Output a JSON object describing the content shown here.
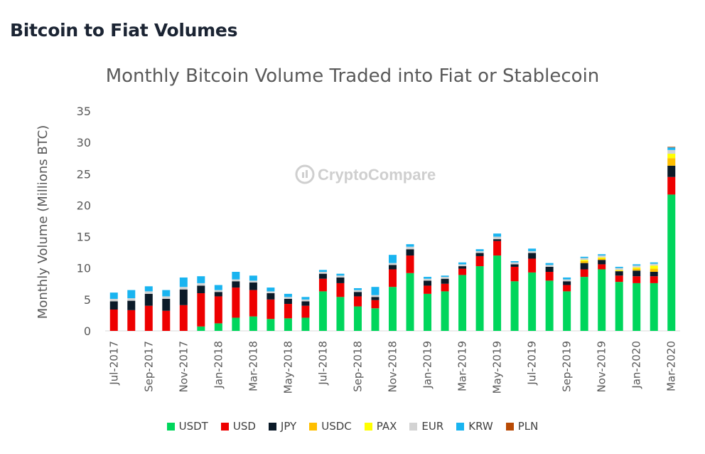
{
  "page": {
    "heading": "Bitcoin to Fiat Volumes",
    "watermark": "CryptoCompare"
  },
  "colors": {
    "USDT": "#00d65c",
    "USD": "#ee0000",
    "JPY": "#0b1a28",
    "USDC": "#ffbf00",
    "PAX": "#ffff00",
    "EUR": "#d3d3d3",
    "KRW": "#19b4f0",
    "PLN": "#b84a05"
  },
  "chart_data": {
    "type": "bar",
    "stacked": true,
    "title": "Monthly Bitcoin Volume Traded into Fiat or Stablecoin",
    "xlabel": "",
    "ylabel": "Monthly Volume (Millions BTC)",
    "ylim": [
      0,
      35
    ],
    "yticks": [
      0,
      5,
      10,
      15,
      20,
      25,
      30,
      35
    ],
    "grid": false,
    "legend_position": "bottom",
    "categories": [
      "Jul-2017",
      "Aug-2017",
      "Sep-2017",
      "Oct-2017",
      "Nov-2017",
      "Dec-2017",
      "Jan-2018",
      "Feb-2018",
      "Mar-2018",
      "Apr-2018",
      "May-2018",
      "Jun-2018",
      "Jul-2018",
      "Aug-2018",
      "Sep-2018",
      "Oct-2018",
      "Nov-2018",
      "Dec-2018",
      "Jan-2019",
      "Feb-2019",
      "Mar-2019",
      "Apr-2019",
      "May-2019",
      "Jun-2019",
      "Jul-2019",
      "Aug-2019",
      "Sep-2019",
      "Oct-2019",
      "Nov-2019",
      "Dec-2019",
      "Jan-2020",
      "Feb-2020",
      "Mar-2020"
    ],
    "x_tick_labels": [
      "Jul-2017",
      "",
      "Sep-2017",
      "",
      "Nov-2017",
      "",
      "Jan-2018",
      "",
      "Mar-2018",
      "",
      "May-2018",
      "",
      "Jul-2018",
      "",
      "Sep-2018",
      "",
      "Nov-2018",
      "",
      "Jan-2019",
      "",
      "Mar-2019",
      "",
      "May-2019",
      "",
      "Jul-2019",
      "",
      "Sep-2019",
      "",
      "Nov-2019",
      "",
      "Jan-2020",
      "",
      "Mar-2020"
    ],
    "series": [
      {
        "name": "USDT",
        "values": [
          0,
          0,
          0,
          0,
          0,
          0.7,
          1.2,
          2.1,
          2.3,
          1.9,
          2.0,
          2.1,
          6.3,
          5.4,
          3.9,
          3.6,
          7.0,
          9.2,
          5.9,
          6.3,
          8.9,
          10.3,
          12.0,
          7.9,
          9.3,
          8.0,
          6.3,
          8.6,
          9.8,
          7.8,
          7.6,
          7.6,
          21.7
        ]
      },
      {
        "name": "USD",
        "values": [
          3.4,
          3.3,
          4.0,
          3.2,
          4.1,
          5.3,
          4.3,
          4.8,
          4.2,
          3.1,
          2.3,
          1.9,
          2.0,
          2.2,
          1.6,
          1.3,
          2.8,
          2.8,
          1.3,
          1.2,
          1.0,
          1.6,
          2.3,
          2.3,
          2.2,
          1.4,
          1.0,
          1.2,
          0.8,
          1.0,
          1.1,
          1.1,
          2.8
        ]
      },
      {
        "name": "JPY",
        "values": [
          1.3,
          1.5,
          1.9,
          1.9,
          2.5,
          1.2,
          0.7,
          1.0,
          1.2,
          1.0,
          0.8,
          0.7,
          0.8,
          0.9,
          0.7,
          0.5,
          0.7,
          1.0,
          0.8,
          0.8,
          0.4,
          0.5,
          0.3,
          0.4,
          0.9,
          0.8,
          0.6,
          1.0,
          0.7,
          0.7,
          0.9,
          0.7,
          1.8
        ]
      },
      {
        "name": "USDC",
        "values": [
          0,
          0,
          0,
          0,
          0,
          0,
          0,
          0,
          0,
          0,
          0,
          0,
          0,
          0,
          0,
          0,
          0,
          0,
          0,
          0,
          0,
          0,
          0,
          0,
          0,
          0,
          0,
          0.3,
          0.2,
          0.1,
          0.3,
          0.5,
          1.2
        ]
      },
      {
        "name": "PAX",
        "values": [
          0,
          0,
          0,
          0,
          0,
          0,
          0,
          0,
          0,
          0,
          0,
          0,
          0,
          0,
          0,
          0,
          0,
          0,
          0,
          0,
          0,
          0,
          0,
          0,
          0,
          0,
          0,
          0.2,
          0.2,
          0.1,
          0.2,
          0.5,
          0.7
        ]
      },
      {
        "name": "EUR",
        "values": [
          0.4,
          0.4,
          0.4,
          0.4,
          0.4,
          0.4,
          0.3,
          0.3,
          0.3,
          0.3,
          0.3,
          0.3,
          0.3,
          0.3,
          0.3,
          0.3,
          0.3,
          0.4,
          0.3,
          0.3,
          0.3,
          0.3,
          0.4,
          0.3,
          0.3,
          0.3,
          0.3,
          0.3,
          0.3,
          0.3,
          0.3,
          0.3,
          0.6
        ]
      },
      {
        "name": "KRW",
        "values": [
          1.0,
          1.3,
          0.8,
          1.0,
          1.5,
          1.1,
          0.8,
          1.2,
          0.8,
          0.6,
          0.5,
          0.4,
          0.3,
          0.3,
          0.3,
          1.3,
          1.3,
          0.4,
          0.3,
          0.2,
          0.3,
          0.3,
          0.5,
          0.2,
          0.4,
          0.3,
          0.3,
          0.2,
          0.2,
          0.2,
          0.2,
          0.2,
          0.4
        ]
      },
      {
        "name": "PLN",
        "values": [
          0,
          0,
          0,
          0,
          0,
          0,
          0,
          0,
          0,
          0,
          0,
          0,
          0,
          0,
          0,
          0,
          0,
          0,
          0,
          0,
          0,
          0,
          0,
          0,
          0,
          0,
          0,
          0,
          0,
          0,
          0,
          0,
          0.1
        ]
      }
    ]
  }
}
